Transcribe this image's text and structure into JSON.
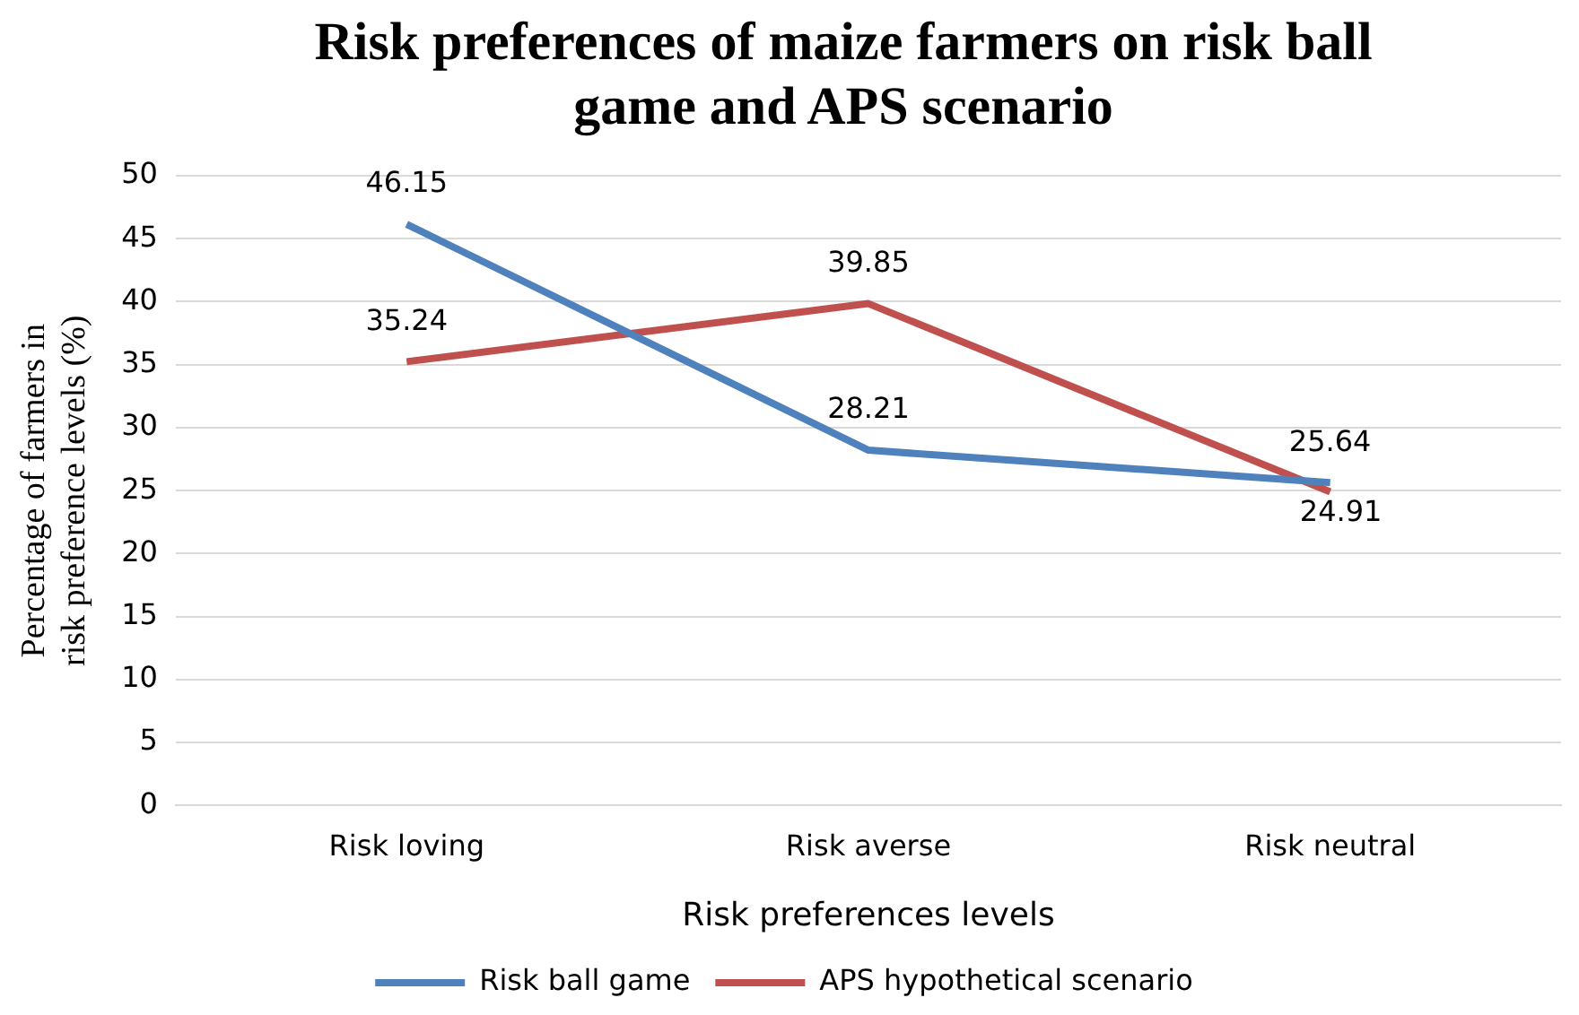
{
  "chart_data": {
    "type": "line",
    "title": "Risk preferences of maize farmers on risk ball game and APS scenario",
    "xlabel": "Risk preferences levels",
    "ylabel": "Percentage of farmers in risk preference levels (%)",
    "categories": [
      "Risk loving",
      "Risk averse",
      "Risk neutral"
    ],
    "series": [
      {
        "name": "Risk ball game",
        "color": "#4f81bd",
        "values": [
          46.15,
          28.21,
          25.64
        ]
      },
      {
        "name": "APS hypothetical scenario",
        "color": "#c0504d",
        "values": [
          35.24,
          39.85,
          24.91
        ]
      }
    ],
    "ylim": [
      0,
      50
    ],
    "yticks": [
      0,
      5,
      10,
      15,
      20,
      25,
      30,
      35,
      40,
      45,
      50
    ],
    "grid": "y",
    "legend": "bottom",
    "marker": "none",
    "line_style": "solid",
    "data_labels": true
  }
}
